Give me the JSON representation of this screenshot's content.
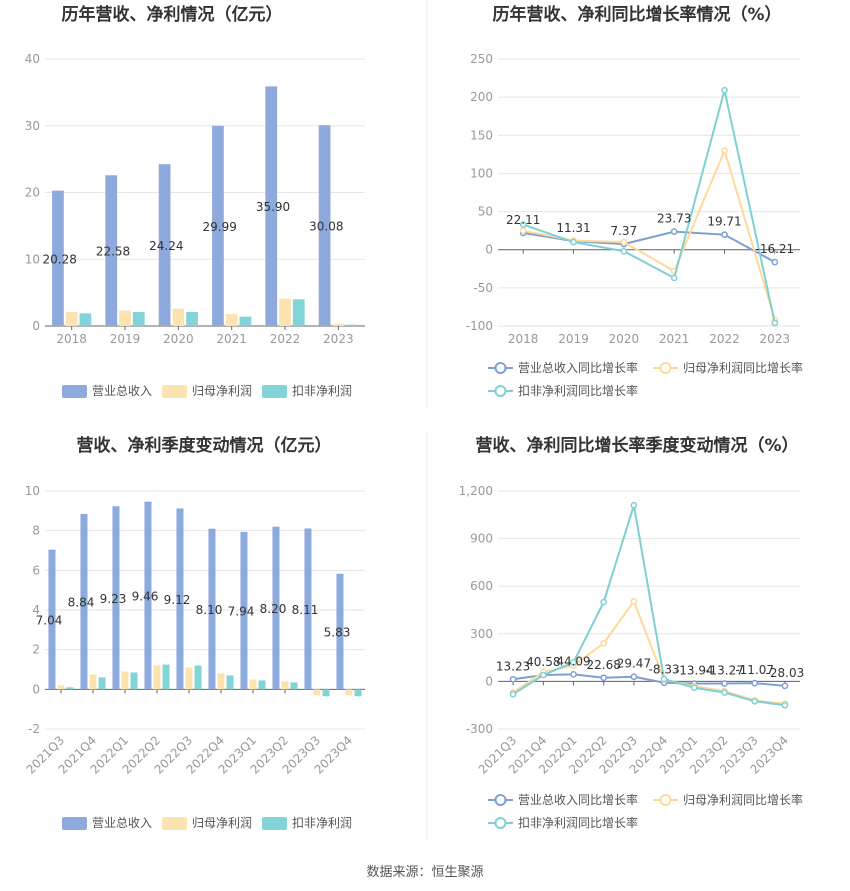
{
  "source": "数据来源：恒生聚源",
  "colors": {
    "revenue": "#8eaadc",
    "net_profit": "#fde3b0",
    "deducted_profit": "#82d4d9",
    "revenue_line": "#7f9fd4",
    "net_line": "#fdd99a",
    "deducted_line": "#7fd0d4"
  },
  "chart_data": [
    {
      "type": "bar",
      "title": "历年营收、净利情况（亿元）",
      "categories": [
        "2018",
        "2019",
        "2020",
        "2021",
        "2022",
        "2023"
      ],
      "ylim": [
        0,
        40
      ],
      "yticks": [
        "0",
        "10",
        "20",
        "30",
        "40"
      ],
      "series": [
        {
          "name": "营业总收入",
          "values": [
            20.28,
            22.58,
            24.24,
            29.99,
            35.9,
            30.08
          ],
          "labels": [
            "20.28",
            "22.58",
            "24.24",
            "29.99",
            "35.90",
            "30.08"
          ]
        },
        {
          "name": "归母净利润",
          "values": [
            2.1,
            2.3,
            2.6,
            1.8,
            4.1,
            0.3
          ]
        },
        {
          "name": "扣非净利润",
          "values": [
            1.9,
            2.1,
            2.1,
            1.4,
            4.0,
            0.2
          ]
        }
      ]
    },
    {
      "type": "line",
      "title": "历年营收、净利同比增长率情况（%）",
      "categories": [
        "2018",
        "2019",
        "2020",
        "2021",
        "2022",
        "2023"
      ],
      "ylim": [
        -100,
        250
      ],
      "yticks": [
        "-100",
        "-50",
        "0",
        "50",
        "100",
        "150",
        "200",
        "250"
      ],
      "series": [
        {
          "name": "营业总收入同比增长率",
          "values": [
            22.11,
            11.31,
            7.37,
            23.73,
            19.71,
            -16.21
          ],
          "labels": [
            "22.11",
            "11.31",
            "7.37",
            "23.73",
            "19.71",
            "-16.21"
          ]
        },
        {
          "name": "归母净利润同比增长率",
          "values": [
            25,
            12,
            10,
            -28,
            130,
            -92
          ]
        },
        {
          "name": "扣非净利润同比增长率",
          "values": [
            33,
            10,
            -2,
            -37,
            209,
            -96
          ]
        }
      ]
    },
    {
      "type": "bar",
      "title": "营收、净利季度变动情况（亿元）",
      "categories": [
        "2021Q3",
        "2021Q4",
        "2022Q1",
        "2022Q2",
        "2022Q3",
        "2022Q4",
        "2023Q1",
        "2023Q2",
        "2023Q3",
        "2023Q4"
      ],
      "ylim": [
        -2,
        10
      ],
      "yticks": [
        "-2",
        "0",
        "2",
        "4",
        "6",
        "8",
        "10"
      ],
      "series": [
        {
          "name": "营业总收入",
          "values": [
            7.04,
            8.84,
            9.23,
            9.46,
            9.12,
            8.1,
            7.94,
            8.2,
            8.11,
            5.83
          ],
          "labels": [
            "7.04",
            "8.84",
            "9.23",
            "9.46",
            "9.12",
            "8.10",
            "7.94",
            "8.20",
            "8.11",
            "5.83"
          ]
        },
        {
          "name": "归母净利润",
          "values": [
            0.2,
            0.75,
            0.9,
            1.2,
            1.1,
            0.8,
            0.5,
            0.4,
            -0.3,
            -0.3
          ]
        },
        {
          "name": "扣非净利润",
          "values": [
            0.1,
            0.6,
            0.85,
            1.25,
            1.2,
            0.7,
            0.45,
            0.35,
            -0.35,
            -0.35
          ]
        }
      ]
    },
    {
      "type": "line",
      "title": "营收、净利同比增长率季度变动情况（%）",
      "categories": [
        "2021Q3",
        "2021Q4",
        "2022Q1",
        "2022Q2",
        "2022Q3",
        "2022Q4",
        "2023Q1",
        "2023Q2",
        "2023Q3",
        "2023Q4"
      ],
      "ylim": [
        -300,
        1200
      ],
      "yticks": [
        "-300",
        "0",
        "300",
        "600",
        "900",
        "1,200"
      ],
      "series": [
        {
          "name": "营业总收入同比增长率",
          "values": [
            13.23,
            40.58,
            44.09,
            22.68,
            29.47,
            -8.33,
            -13.94,
            -13.27,
            -11.07,
            -28.03
          ],
          "labels": [
            "13.23",
            "40.58",
            "44.09",
            "22.68",
            "29.47",
            "-8.33",
            "-13.94",
            "-13.27",
            "-11.07",
            "-28.03"
          ]
        },
        {
          "name": "归母净利润同比增长率",
          "values": [
            -70,
            60,
            100,
            240,
            505,
            10,
            -30,
            -60,
            -120,
            -140
          ]
        },
        {
          "name": "扣非净利润同比增长率",
          "values": [
            -80,
            40,
            120,
            500,
            1110,
            15,
            -40,
            -70,
            -125,
            -150
          ]
        }
      ]
    }
  ]
}
